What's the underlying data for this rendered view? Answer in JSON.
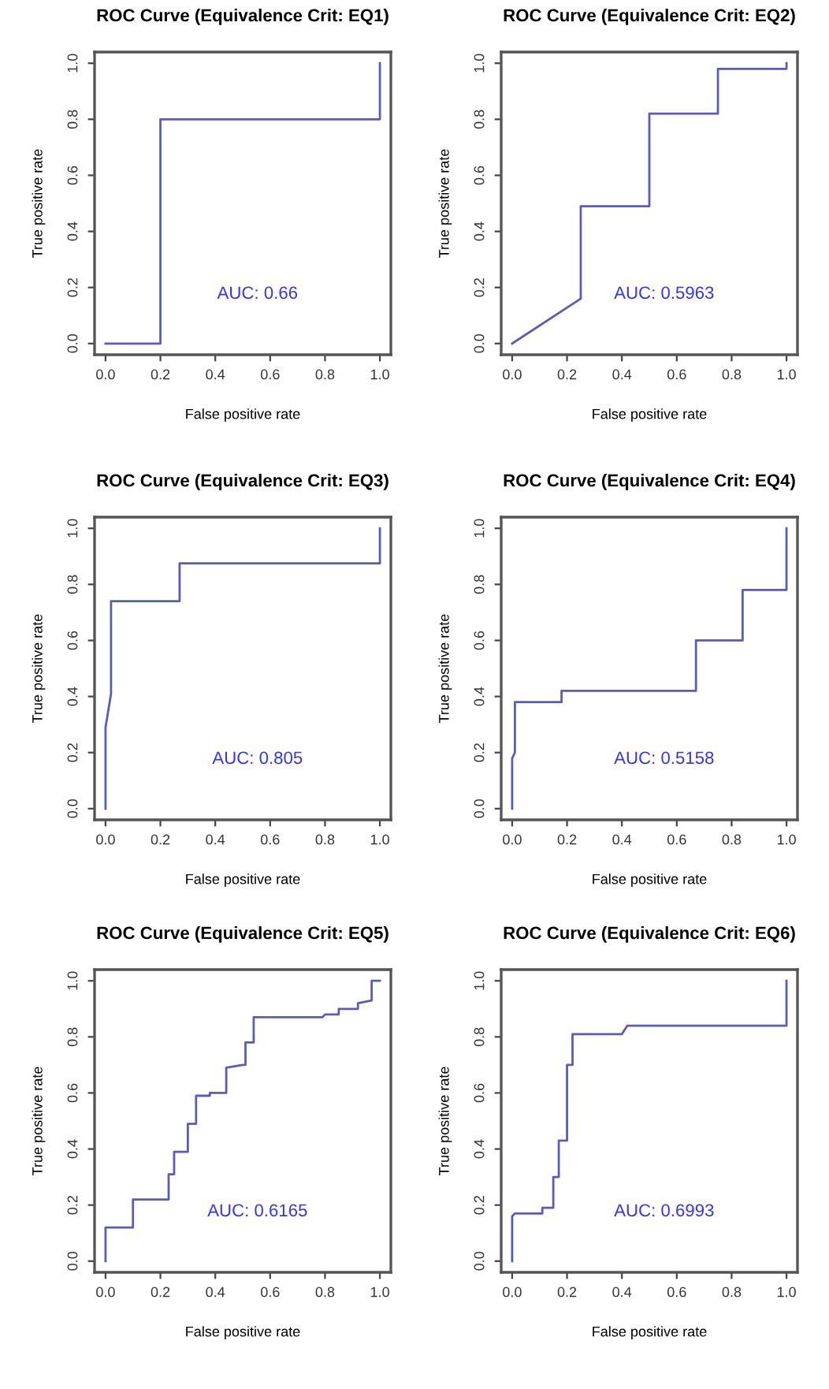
{
  "chart_data": [
    {
      "type": "line",
      "title": "ROC Curve (Equivalence Crit: EQ1)",
      "xlabel": "False positive rate",
      "ylabel": "True positive rate",
      "annotations": [
        "AUC: 0.66"
      ],
      "xlim": [
        -0.04,
        1.04
      ],
      "ylim": [
        -0.04,
        1.04
      ],
      "xticks": [
        {
          "value": 0,
          "label": "0.0"
        },
        {
          "value": 0.2,
          "label": "0.2"
        },
        {
          "value": 0.4,
          "label": "0.4"
        },
        {
          "value": 0.6,
          "label": "0.6"
        },
        {
          "value": 0.8,
          "label": "0.8"
        },
        {
          "value": 1,
          "label": "1.0"
        }
      ],
      "yticks": [
        {
          "value": 0,
          "label": "0.0"
        },
        {
          "value": 0.2,
          "label": "0.2"
        },
        {
          "value": 0.4,
          "label": "0.4"
        },
        {
          "value": 0.6,
          "label": "0.6"
        },
        {
          "value": 0.8,
          "label": "0.8"
        },
        {
          "value": 1,
          "label": "1.0"
        }
      ],
      "series": [
        {
          "color": "#5a5abf",
          "x": [
            0,
            0.2,
            0.2,
            1,
            1
          ],
          "values": [
            0,
            0,
            0.8,
            0.8,
            1
          ]
        }
      ]
    },
    {
      "type": "line",
      "title": "ROC Curve (Equivalence Crit: EQ2)",
      "xlabel": "False positive rate",
      "ylabel": "True positive rate",
      "annotations": [
        "AUC: 0.5963"
      ],
      "xlim": [
        -0.04,
        1.04
      ],
      "ylim": [
        -0.04,
        1.04
      ],
      "xticks": [
        {
          "value": 0,
          "label": "0.0"
        },
        {
          "value": 0.2,
          "label": "0.2"
        },
        {
          "value": 0.4,
          "label": "0.4"
        },
        {
          "value": 0.6,
          "label": "0.6"
        },
        {
          "value": 0.8,
          "label": "0.8"
        },
        {
          "value": 1,
          "label": "1.0"
        }
      ],
      "yticks": [
        {
          "value": 0,
          "label": "0.0"
        },
        {
          "value": 0.2,
          "label": "0.2"
        },
        {
          "value": 0.4,
          "label": "0.4"
        },
        {
          "value": 0.6,
          "label": "0.6"
        },
        {
          "value": 0.8,
          "label": "0.8"
        },
        {
          "value": 1,
          "label": "1.0"
        }
      ],
      "series": [
        {
          "color": "#5a5abf",
          "x": [
            0,
            0.25,
            0.25,
            0.5,
            0.5,
            0.75,
            0.75,
            1,
            1
          ],
          "values": [
            0,
            0.16,
            0.49,
            0.49,
            0.82,
            0.82,
            0.98,
            0.98,
            1
          ]
        }
      ]
    },
    {
      "type": "line",
      "title": "ROC Curve (Equivalence Crit: EQ3)",
      "xlabel": "False positive rate",
      "ylabel": "True positive rate",
      "annotations": [
        "AUC: 0.805"
      ],
      "xlim": [
        -0.04,
        1.04
      ],
      "ylim": [
        -0.04,
        1.04
      ],
      "xticks": [
        {
          "value": 0,
          "label": "0.0"
        },
        {
          "value": 0.2,
          "label": "0.2"
        },
        {
          "value": 0.4,
          "label": "0.4"
        },
        {
          "value": 0.6,
          "label": "0.6"
        },
        {
          "value": 0.8,
          "label": "0.8"
        },
        {
          "value": 1,
          "label": "1.0"
        }
      ],
      "yticks": [
        {
          "value": 0,
          "label": "0.0"
        },
        {
          "value": 0.2,
          "label": "0.2"
        },
        {
          "value": 0.4,
          "label": "0.4"
        },
        {
          "value": 0.6,
          "label": "0.6"
        },
        {
          "value": 0.8,
          "label": "0.8"
        },
        {
          "value": 1,
          "label": "1.0"
        }
      ],
      "series": [
        {
          "color": "#5a5abf",
          "x": [
            0,
            0,
            0.02,
            0.02,
            0.27,
            0.27,
            1,
            1
          ],
          "values": [
            0,
            0.29,
            0.41,
            0.74,
            0.74,
            0.875,
            0.875,
            1
          ]
        }
      ]
    },
    {
      "type": "line",
      "title": "ROC Curve (Equivalence Crit: EQ4)",
      "xlabel": "False positive rate",
      "ylabel": "True positive rate",
      "annotations": [
        "AUC: 0.5158"
      ],
      "xlim": [
        -0.04,
        1.04
      ],
      "ylim": [
        -0.04,
        1.04
      ],
      "xticks": [
        {
          "value": 0,
          "label": "0.0"
        },
        {
          "value": 0.2,
          "label": "0.2"
        },
        {
          "value": 0.4,
          "label": "0.4"
        },
        {
          "value": 0.6,
          "label": "0.6"
        },
        {
          "value": 0.8,
          "label": "0.8"
        },
        {
          "value": 1,
          "label": "1.0"
        }
      ],
      "yticks": [
        {
          "value": 0,
          "label": "0.0"
        },
        {
          "value": 0.2,
          "label": "0.2"
        },
        {
          "value": 0.4,
          "label": "0.4"
        },
        {
          "value": 0.6,
          "label": "0.6"
        },
        {
          "value": 0.8,
          "label": "0.8"
        },
        {
          "value": 1,
          "label": "1.0"
        }
      ],
      "series": [
        {
          "color": "#5a5abf",
          "x": [
            0,
            0,
            0.01,
            0.01,
            0.18,
            0.18,
            0.67,
            0.67,
            0.84,
            0.84,
            1,
            1
          ],
          "values": [
            0,
            0.18,
            0.2,
            0.38,
            0.38,
            0.42,
            0.42,
            0.6,
            0.6,
            0.78,
            0.78,
            1
          ]
        }
      ]
    },
    {
      "type": "line",
      "title": "ROC Curve (Equivalence Crit: EQ5)",
      "xlabel": "False positive rate",
      "ylabel": "True positive rate",
      "annotations": [
        "AUC: 0.6165"
      ],
      "xlim": [
        -0.04,
        1.04
      ],
      "ylim": [
        -0.04,
        1.04
      ],
      "xticks": [
        {
          "value": 0,
          "label": "0.0"
        },
        {
          "value": 0.2,
          "label": "0.2"
        },
        {
          "value": 0.4,
          "label": "0.4"
        },
        {
          "value": 0.6,
          "label": "0.6"
        },
        {
          "value": 0.8,
          "label": "0.8"
        },
        {
          "value": 1,
          "label": "1.0"
        }
      ],
      "yticks": [
        {
          "value": 0,
          "label": "0.0"
        },
        {
          "value": 0.2,
          "label": "0.2"
        },
        {
          "value": 0.4,
          "label": "0.4"
        },
        {
          "value": 0.6,
          "label": "0.6"
        },
        {
          "value": 0.8,
          "label": "0.8"
        },
        {
          "value": 1,
          "label": "1.0"
        }
      ],
      "series": [
        {
          "color": "#5a5abf",
          "x": [
            0,
            0,
            0.1,
            0.1,
            0.23,
            0.23,
            0.25,
            0.25,
            0.3,
            0.3,
            0.33,
            0.33,
            0.38,
            0.38,
            0.44,
            0.44,
            0.5,
            0.51,
            0.51,
            0.54,
            0.54,
            0.79,
            0.8,
            0.85,
            0.85,
            0.92,
            0.92,
            0.97,
            0.97,
            1
          ],
          "values": [
            0,
            0.12,
            0.12,
            0.22,
            0.22,
            0.31,
            0.31,
            0.39,
            0.39,
            0.49,
            0.49,
            0.59,
            0.59,
            0.6,
            0.6,
            0.69,
            0.7,
            0.7,
            0.78,
            0.78,
            0.87,
            0.87,
            0.88,
            0.88,
            0.9,
            0.9,
            0.92,
            0.93,
            1,
            1
          ]
        }
      ]
    },
    {
      "type": "line",
      "title": "ROC Curve (Equivalence Crit: EQ6)",
      "xlabel": "False positive rate",
      "ylabel": "True positive rate",
      "annotations": [
        "AUC: 0.6993"
      ],
      "xlim": [
        -0.04,
        1.04
      ],
      "ylim": [
        -0.04,
        1.04
      ],
      "xticks": [
        {
          "value": 0,
          "label": "0.0"
        },
        {
          "value": 0.2,
          "label": "0.2"
        },
        {
          "value": 0.4,
          "label": "0.4"
        },
        {
          "value": 0.6,
          "label": "0.6"
        },
        {
          "value": 0.8,
          "label": "0.8"
        },
        {
          "value": 1,
          "label": "1.0"
        }
      ],
      "yticks": [
        {
          "value": 0,
          "label": "0.0"
        },
        {
          "value": 0.2,
          "label": "0.2"
        },
        {
          "value": 0.4,
          "label": "0.4"
        },
        {
          "value": 0.6,
          "label": "0.6"
        },
        {
          "value": 0.8,
          "label": "0.8"
        },
        {
          "value": 1,
          "label": "1.0"
        }
      ],
      "series": [
        {
          "color": "#5a5abf",
          "x": [
            0,
            0,
            0.01,
            0.11,
            0.11,
            0.15,
            0.15,
            0.17,
            0.17,
            0.2,
            0.2,
            0.22,
            0.22,
            0.4,
            0.42,
            1,
            1
          ],
          "values": [
            0,
            0.16,
            0.17,
            0.17,
            0.19,
            0.19,
            0.3,
            0.3,
            0.43,
            0.43,
            0.7,
            0.7,
            0.81,
            0.81,
            0.84,
            0.84,
            1
          ]
        }
      ]
    }
  ]
}
